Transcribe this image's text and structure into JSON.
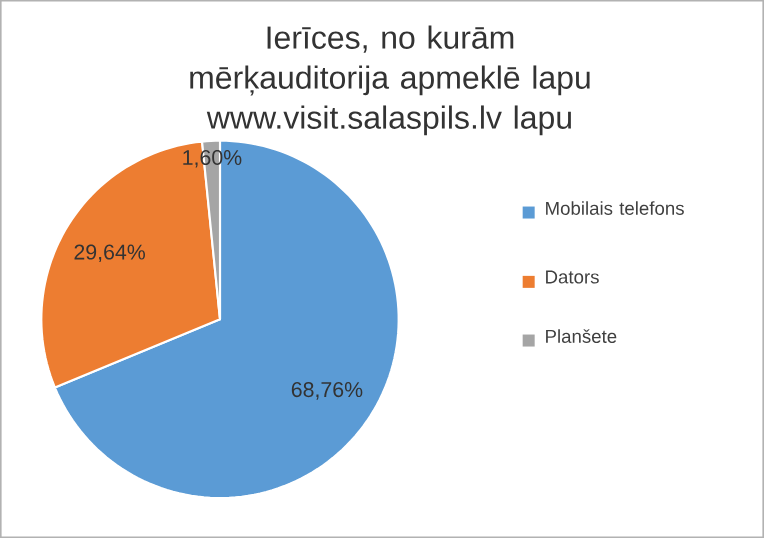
{
  "chart_data": {
    "type": "pie",
    "title": "Ierīces, no kurām mērķauditorija apmeklē lapu www.visit.salaspils.lv lapu",
    "categories": [
      "Mobilais telefons",
      "Dators",
      "Planšete"
    ],
    "values": [
      68.76,
      29.64,
      1.6
    ],
    "value_labels": [
      "68,76%",
      "29,64%",
      "1,60%"
    ],
    "colors": [
      "#5b9bd5",
      "#ed7d31",
      "#a5a5a5"
    ],
    "legend": "right"
  }
}
